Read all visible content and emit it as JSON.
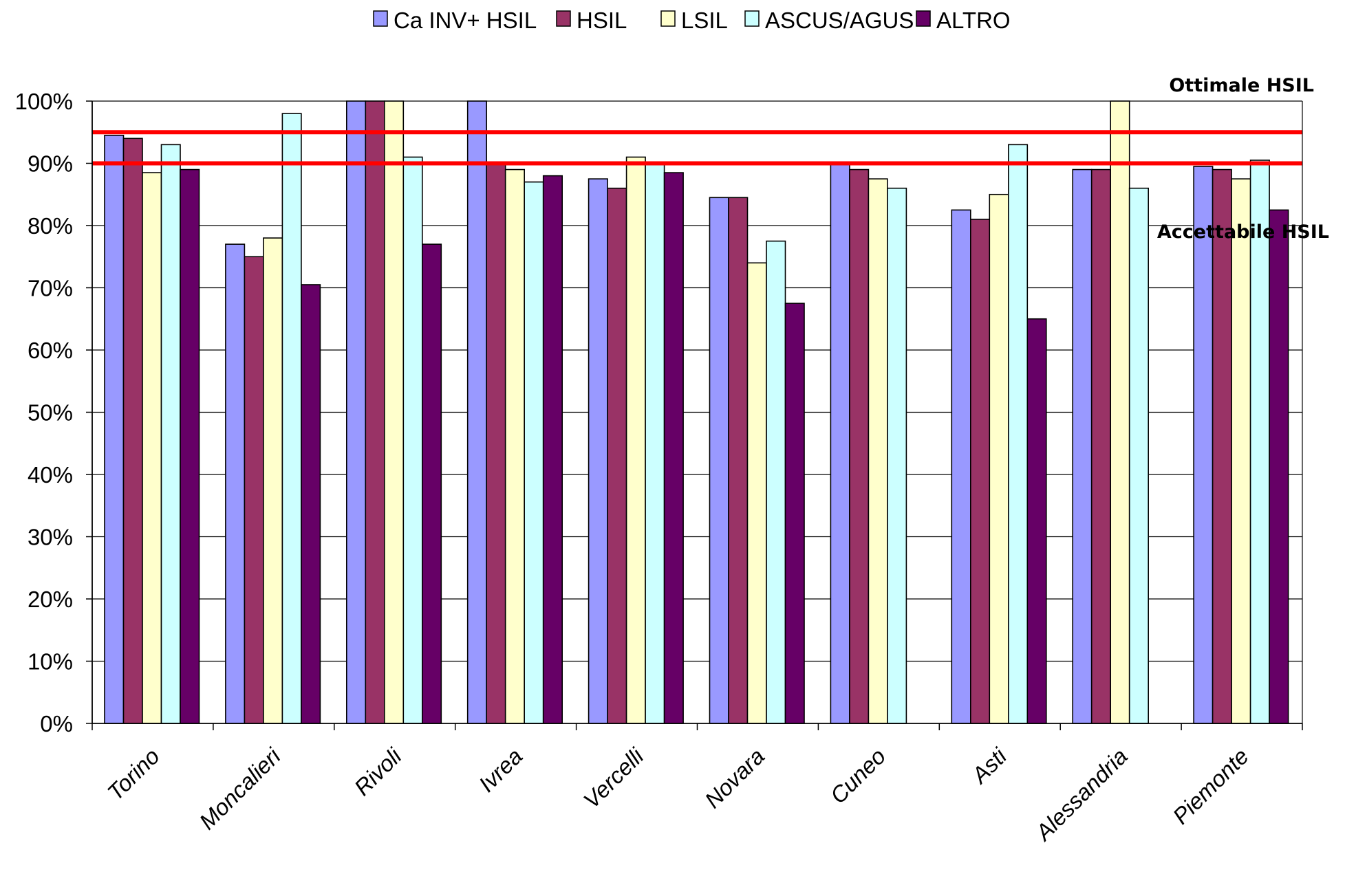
{
  "chart_data": {
    "type": "bar",
    "categories": [
      "Torino",
      "Moncalieri",
      "Rivoli",
      "Ivrea",
      "Vercelli",
      "Novara",
      "Cuneo",
      "Asti",
      "Alessandria",
      "Piemonte"
    ],
    "series": [
      {
        "name": "Ca INV+ HSIL",
        "color": "#9999ff",
        "values": [
          94.5,
          77,
          100,
          100,
          87.5,
          84.5,
          90,
          82.5,
          89,
          89.5
        ]
      },
      {
        "name": "HSIL",
        "color": "#993366",
        "values": [
          94,
          75,
          100,
          90,
          86,
          84.5,
          89,
          81,
          89,
          89
        ]
      },
      {
        "name": "LSIL",
        "color": "#ffffcc",
        "values": [
          88.5,
          78,
          100,
          89,
          91,
          74,
          87.5,
          85,
          100,
          87.5
        ]
      },
      {
        "name": "ASCUS/AGUS",
        "color": "#ccffff",
        "values": [
          93,
          98,
          91,
          87,
          90,
          77.5,
          86,
          93,
          86,
          90.5
        ]
      },
      {
        "name": "ALTRO",
        "color": "#660066",
        "values": [
          89,
          70.5,
          77,
          88,
          88.5,
          67.5,
          null,
          65,
          null,
          82.5
        ]
      }
    ],
    "yticks": [
      "0%",
      "10%",
      "20%",
      "30%",
      "40%",
      "50%",
      "60%",
      "70%",
      "80%",
      "90%",
      "100%"
    ],
    "ylim": [
      0,
      100
    ],
    "grid": true,
    "legend_position": "top",
    "reference_lines": [
      {
        "label": "Ottimale HSIL",
        "value": 95,
        "color": "#ff0000"
      },
      {
        "label": "Accettabile HSIL",
        "value": 90,
        "color": "#ff0000"
      }
    ]
  }
}
